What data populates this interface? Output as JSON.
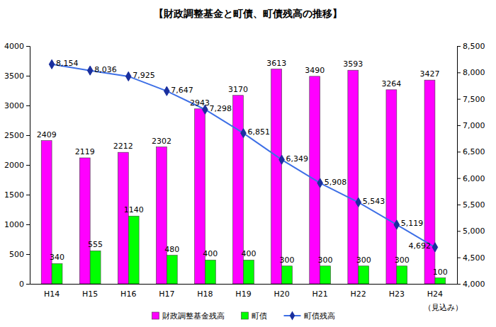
{
  "chart_data": {
    "type": "bar",
    "title": "【財政調整基金と町債、町債残高の推移】",
    "categories": [
      "H14",
      "H15",
      "H16",
      "H17",
      "H18",
      "H19",
      "H20",
      "H21",
      "H22",
      "H23",
      "H24"
    ],
    "series": [
      {
        "name": "財政調整基金残高",
        "type": "bar",
        "color": "#ff00ff",
        "values": [
          2409,
          2119,
          2212,
          2302,
          2943,
          3170,
          3613,
          3490,
          3593,
          3264,
          3427
        ]
      },
      {
        "name": "町債",
        "type": "bar",
        "color": "#00ff00",
        "values": [
          340,
          555,
          1140,
          480,
          400,
          400,
          300,
          300,
          300,
          300,
          100
        ]
      },
      {
        "name": "町債残高",
        "type": "line",
        "axis": "y2",
        "color": "#3d6fe6",
        "marker": "diamond",
        "values": [
          8154,
          8036,
          7925,
          7647,
          7298,
          6851,
          6349,
          5908,
          5543,
          5119,
          4692
        ],
        "value_labels": [
          "8,154",
          "8,036",
          "7,925",
          "7,647",
          "7,298",
          "6,851",
          "6,349",
          "5,908",
          "5,543",
          "5,119",
          "4,692"
        ]
      }
    ],
    "ylim": [
      0,
      4000
    ],
    "yticks": [
      0,
      500,
      1000,
      1500,
      2000,
      2500,
      3000,
      3500,
      4000
    ],
    "y2lim": [
      4000,
      8500
    ],
    "y2ticks": [
      {
        "value": 4000,
        "label": "4,000"
      },
      {
        "value": 4500,
        "label": "4,500"
      },
      {
        "value": 5000,
        "label": "5,000"
      },
      {
        "value": 5500,
        "label": "5,500"
      },
      {
        "value": 6000,
        "label": "6,000"
      },
      {
        "value": 6500,
        "label": "6,500"
      },
      {
        "value": 7000,
        "label": "7,000"
      },
      {
        "value": 7500,
        "label": "7,500"
      },
      {
        "value": 8000,
        "label": "8,000"
      },
      {
        "value": 8500,
        "label": "8,500"
      }
    ],
    "grid": false,
    "legend": "bottom",
    "data_labels": true,
    "annotations": [
      {
        "text": "（見込み）",
        "category": "H24"
      }
    ]
  }
}
